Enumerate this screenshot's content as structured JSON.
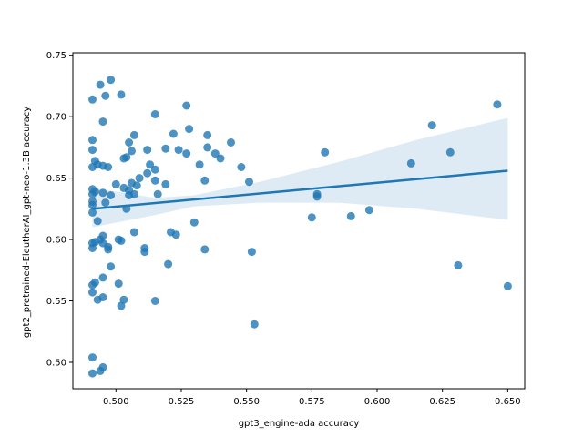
{
  "chart_data": {
    "type": "scatter",
    "xlabel": "gpt3_engine-ada accuracy",
    "ylabel": "gpt2_pretrained-EleutherAI_gpt-neo-1.3B accuracy",
    "xlim": [
      0.4835,
      0.6565
    ],
    "ylim": [
      0.4785,
      0.752
    ],
    "xticks": [
      0.5,
      0.525,
      0.55,
      0.575,
      0.6,
      0.625,
      0.65
    ],
    "xtick_labels": [
      "0.500",
      "0.525",
      "0.550",
      "0.575",
      "0.600",
      "0.625",
      "0.650"
    ],
    "yticks": [
      0.5,
      0.55,
      0.6,
      0.65,
      0.7,
      0.75
    ],
    "ytick_labels": [
      "0.50",
      "0.55",
      "0.60",
      "0.65",
      "0.70",
      "0.75"
    ],
    "grid": false,
    "point_color": "#1f77b4",
    "regression": {
      "x": [
        0.491,
        0.65
      ],
      "y": [
        0.625,
        0.656
      ],
      "ci_lower": [
        0.61,
        0.62,
        0.627,
        0.63,
        0.63,
        0.625,
        0.616
      ],
      "ci_upper": [
        0.642,
        0.634,
        0.636,
        0.647,
        0.663,
        0.681,
        0.699
      ],
      "ci_x": [
        0.491,
        0.515,
        0.53,
        0.555,
        0.585,
        0.615,
        0.65
      ]
    },
    "points": [
      [
        0.491,
        0.714
      ],
      [
        0.491,
        0.681
      ],
      [
        0.491,
        0.673
      ],
      [
        0.491,
        0.659
      ],
      [
        0.491,
        0.641
      ],
      [
        0.491,
        0.637
      ],
      [
        0.491,
        0.631
      ],
      [
        0.491,
        0.628
      ],
      [
        0.491,
        0.622
      ],
      [
        0.491,
        0.597
      ],
      [
        0.491,
        0.593
      ],
      [
        0.491,
        0.563
      ],
      [
        0.491,
        0.557
      ],
      [
        0.491,
        0.504
      ],
      [
        0.491,
        0.491
      ],
      [
        0.492,
        0.664
      ],
      [
        0.493,
        0.661
      ],
      [
        0.492,
        0.639
      ],
      [
        0.492,
        0.598
      ],
      [
        0.492,
        0.565
      ],
      [
        0.493,
        0.615
      ],
      [
        0.493,
        0.551
      ],
      [
        0.494,
        0.726
      ],
      [
        0.494,
        0.6
      ],
      [
        0.494,
        0.493
      ],
      [
        0.495,
        0.696
      ],
      [
        0.495,
        0.66
      ],
      [
        0.495,
        0.638
      ],
      [
        0.495,
        0.603
      ],
      [
        0.495,
        0.597
      ],
      [
        0.495,
        0.569
      ],
      [
        0.495,
        0.553
      ],
      [
        0.495,
        0.496
      ],
      [
        0.496,
        0.717
      ],
      [
        0.496,
        0.63
      ],
      [
        0.497,
        0.659
      ],
      [
        0.497,
        0.594
      ],
      [
        0.497,
        0.592
      ],
      [
        0.498,
        0.73
      ],
      [
        0.498,
        0.636
      ],
      [
        0.498,
        0.578
      ],
      [
        0.5,
        0.645
      ],
      [
        0.501,
        0.6
      ],
      [
        0.501,
        0.564
      ],
      [
        0.502,
        0.718
      ],
      [
        0.502,
        0.599
      ],
      [
        0.502,
        0.546
      ],
      [
        0.503,
        0.551
      ],
      [
        0.503,
        0.642
      ],
      [
        0.503,
        0.666
      ],
      [
        0.504,
        0.667
      ],
      [
        0.504,
        0.625
      ],
      [
        0.505,
        0.679
      ],
      [
        0.505,
        0.64
      ],
      [
        0.505,
        0.636
      ],
      [
        0.506,
        0.672
      ],
      [
        0.506,
        0.646
      ],
      [
        0.507,
        0.685
      ],
      [
        0.507,
        0.637
      ],
      [
        0.507,
        0.606
      ],
      [
        0.508,
        0.644
      ],
      [
        0.509,
        0.65
      ],
      [
        0.511,
        0.593
      ],
      [
        0.511,
        0.59
      ],
      [
        0.512,
        0.673
      ],
      [
        0.512,
        0.654
      ],
      [
        0.513,
        0.661
      ],
      [
        0.515,
        0.702
      ],
      [
        0.515,
        0.657
      ],
      [
        0.515,
        0.648
      ],
      [
        0.515,
        0.55
      ],
      [
        0.516,
        0.637
      ],
      [
        0.519,
        0.674
      ],
      [
        0.519,
        0.645
      ],
      [
        0.52,
        0.58
      ],
      [
        0.521,
        0.606
      ],
      [
        0.522,
        0.686
      ],
      [
        0.523,
        0.604
      ],
      [
        0.524,
        0.673
      ],
      [
        0.527,
        0.709
      ],
      [
        0.527,
        0.67
      ],
      [
        0.528,
        0.69
      ],
      [
        0.53,
        0.614
      ],
      [
        0.532,
        0.661
      ],
      [
        0.534,
        0.648
      ],
      [
        0.534,
        0.592
      ],
      [
        0.535,
        0.675
      ],
      [
        0.535,
        0.685
      ],
      [
        0.538,
        0.67
      ],
      [
        0.54,
        0.666
      ],
      [
        0.544,
        0.679
      ],
      [
        0.548,
        0.659
      ],
      [
        0.551,
        0.647
      ],
      [
        0.552,
        0.59
      ],
      [
        0.553,
        0.531
      ],
      [
        0.575,
        0.618
      ],
      [
        0.577,
        0.637
      ],
      [
        0.577,
        0.635
      ],
      [
        0.58,
        0.671
      ],
      [
        0.59,
        0.619
      ],
      [
        0.597,
        0.624
      ],
      [
        0.613,
        0.662
      ],
      [
        0.621,
        0.693
      ],
      [
        0.628,
        0.671
      ],
      [
        0.631,
        0.579
      ],
      [
        0.646,
        0.71
      ],
      [
        0.65,
        0.562
      ]
    ]
  }
}
